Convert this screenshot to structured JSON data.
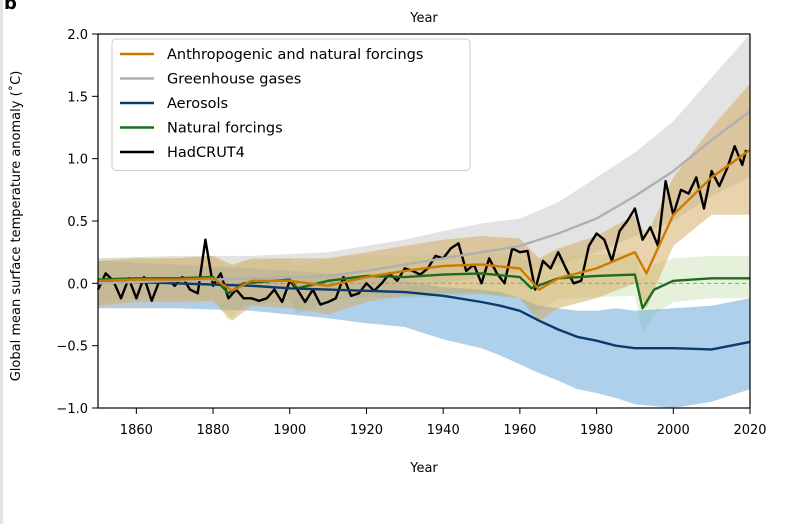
{
  "panel_label": "b",
  "chart_data": {
    "type": "line",
    "top_label": "Year",
    "xlabel": "Year",
    "ylabel": "Global mean surface temperature anomaly (˚C)",
    "xlim": [
      1850,
      2020
    ],
    "ylim": [
      -1.0,
      2.0
    ],
    "x_ticks": [
      1860,
      1880,
      1900,
      1920,
      1940,
      1960,
      1980,
      2000,
      2020
    ],
    "y_ticks": [
      -1.0,
      -0.5,
      0.0,
      0.5,
      1.0,
      1.5,
      2.0
    ],
    "y_tick_labels": [
      "−1.0",
      "−0.5",
      "0.0",
      "0.5",
      "1.0",
      "1.5",
      "2.0"
    ],
    "grid": false,
    "legend_position": "top-left",
    "zero_line": {
      "y": 0,
      "style": "dashed",
      "color": "#999999"
    },
    "series": [
      {
        "name": "Anthropogenic and natural forcings",
        "color": "#cc7a00",
        "band_color": "#d4a85a",
        "x": [
          1850,
          1860,
          1870,
          1880,
          1885,
          1890,
          1900,
          1910,
          1920,
          1930,
          1940,
          1950,
          1960,
          1965,
          1970,
          1980,
          1990,
          1993,
          2000,
          2010,
          2020
        ],
        "y": [
          0.02,
          0.03,
          0.03,
          0.04,
          -0.06,
          0.02,
          0.02,
          -0.02,
          0.05,
          0.1,
          0.14,
          0.15,
          0.12,
          -0.05,
          0.04,
          0.12,
          0.25,
          0.08,
          0.55,
          0.85,
          1.07
        ],
        "lower": [
          -0.18,
          -0.15,
          -0.15,
          -0.14,
          -0.3,
          -0.18,
          -0.2,
          -0.25,
          -0.15,
          -0.1,
          -0.08,
          -0.08,
          -0.12,
          -0.3,
          -0.2,
          -0.12,
          0.0,
          -0.2,
          0.3,
          0.55,
          0.55
        ],
        "upper": [
          0.18,
          0.2,
          0.2,
          0.22,
          0.15,
          0.2,
          0.2,
          0.2,
          0.25,
          0.3,
          0.35,
          0.38,
          0.36,
          0.2,
          0.28,
          0.38,
          0.55,
          0.38,
          0.85,
          1.25,
          1.6
        ]
      },
      {
        "name": "Greenhouse gases",
        "color": "#b0b0b0",
        "band_color": "#c8c8c8",
        "x": [
          1850,
          1870,
          1890,
          1910,
          1920,
          1930,
          1940,
          1950,
          1960,
          1970,
          1980,
          1990,
          2000,
          2010,
          2020
        ],
        "y": [
          0.0,
          0.02,
          0.04,
          0.06,
          0.1,
          0.15,
          0.2,
          0.25,
          0.3,
          0.4,
          0.52,
          0.7,
          0.9,
          1.15,
          1.38
        ],
        "lower": [
          -0.2,
          -0.18,
          -0.15,
          -0.12,
          -0.08,
          -0.03,
          0.0,
          0.05,
          0.1,
          0.15,
          0.25,
          0.38,
          0.5,
          0.7,
          0.85
        ],
        "upper": [
          0.2,
          0.22,
          0.22,
          0.25,
          0.3,
          0.35,
          0.42,
          0.48,
          0.52,
          0.65,
          0.85,
          1.05,
          1.3,
          1.65,
          2.0
        ]
      },
      {
        "name": "Aerosols",
        "color": "#0d3a6e",
        "band_color": "#5fa2d6",
        "x": [
          1850,
          1870,
          1890,
          1900,
          1910,
          1920,
          1930,
          1940,
          1950,
          1955,
          1960,
          1965,
          1970,
          1975,
          1980,
          1985,
          1990,
          2000,
          2010,
          2020
        ],
        "y": [
          0.02,
          0.0,
          -0.02,
          -0.04,
          -0.05,
          -0.06,
          -0.07,
          -0.1,
          -0.15,
          -0.18,
          -0.22,
          -0.3,
          -0.37,
          -0.43,
          -0.46,
          -0.5,
          -0.52,
          -0.52,
          -0.53,
          -0.47
        ],
        "lower": [
          -0.2,
          -0.2,
          -0.22,
          -0.25,
          -0.28,
          -0.32,
          -0.35,
          -0.45,
          -0.52,
          -0.58,
          -0.65,
          -0.72,
          -0.78,
          -0.85,
          -0.88,
          -0.92,
          -0.97,
          -1.0,
          -0.95,
          -0.85
        ],
        "upper": [
          0.18,
          0.15,
          0.12,
          0.1,
          0.08,
          0.05,
          0.02,
          -0.03,
          -0.05,
          -0.07,
          -0.12,
          -0.18,
          -0.2,
          -0.22,
          -0.22,
          -0.2,
          -0.22,
          -0.2,
          -0.18,
          -0.12
        ]
      },
      {
        "name": "Natural forcings",
        "color": "#1d6b1d",
        "band_color": "#cbe3b5",
        "x": [
          1850,
          1860,
          1870,
          1880,
          1884,
          1888,
          1900,
          1902,
          1910,
          1920,
          1930,
          1940,
          1950,
          1960,
          1963,
          1970,
          1980,
          1990,
          1992,
          1995,
          2000,
          2010,
          2020
        ],
        "y": [
          0.03,
          0.04,
          0.04,
          0.05,
          -0.08,
          0.0,
          0.03,
          -0.04,
          0.02,
          0.06,
          0.05,
          0.07,
          0.08,
          0.05,
          -0.04,
          0.04,
          0.06,
          0.07,
          -0.2,
          -0.05,
          0.02,
          0.04,
          0.04
        ],
        "lower": [
          -0.14,
          -0.12,
          -0.12,
          -0.12,
          -0.3,
          -0.18,
          -0.14,
          -0.25,
          -0.14,
          -0.11,
          -0.12,
          -0.1,
          -0.09,
          -0.12,
          -0.25,
          -0.13,
          -0.11,
          -0.1,
          -0.4,
          -0.25,
          -0.15,
          -0.12,
          -0.12
        ],
        "upper": [
          0.2,
          0.21,
          0.2,
          0.22,
          0.1,
          0.18,
          0.2,
          0.14,
          0.2,
          0.23,
          0.22,
          0.24,
          0.25,
          0.22,
          0.15,
          0.21,
          0.23,
          0.24,
          0.05,
          0.15,
          0.2,
          0.22,
          0.22
        ]
      },
      {
        "name": "HadCRUT4",
        "color": "#000000",
        "x": [
          1850,
          1852,
          1854,
          1856,
          1858,
          1860,
          1862,
          1864,
          1866,
          1868,
          1870,
          1872,
          1874,
          1876,
          1878,
          1880,
          1882,
          1884,
          1886,
          1888,
          1890,
          1892,
          1894,
          1896,
          1898,
          1900,
          1902,
          1904,
          1906,
          1908,
          1910,
          1912,
          1914,
          1916,
          1918,
          1920,
          1922,
          1924,
          1926,
          1928,
          1930,
          1932,
          1934,
          1936,
          1938,
          1940,
          1942,
          1944,
          1946,
          1948,
          1950,
          1952,
          1954,
          1956,
          1958,
          1960,
          1962,
          1964,
          1966,
          1968,
          1970,
          1972,
          1974,
          1976,
          1978,
          1980,
          1982,
          1984,
          1986,
          1988,
          1990,
          1992,
          1994,
          1996,
          1998,
          2000,
          2002,
          2004,
          2006,
          2008,
          2010,
          2012,
          2014,
          2016,
          2018,
          2019
        ],
        "y": [
          -0.05,
          0.08,
          0.02,
          -0.12,
          0.04,
          -0.12,
          0.05,
          -0.14,
          0.02,
          0.04,
          -0.02,
          0.05,
          -0.05,
          -0.08,
          0.35,
          -0.02,
          0.08,
          -0.12,
          -0.05,
          -0.12,
          -0.12,
          -0.14,
          -0.12,
          -0.05,
          -0.15,
          0.02,
          -0.05,
          -0.15,
          -0.05,
          -0.17,
          -0.15,
          -0.12,
          0.05,
          -0.1,
          -0.08,
          0.0,
          -0.06,
          0.0,
          0.08,
          0.02,
          0.12,
          0.1,
          0.07,
          0.12,
          0.22,
          0.2,
          0.28,
          0.32,
          0.1,
          0.15,
          0.0,
          0.2,
          0.08,
          0.0,
          0.28,
          0.25,
          0.26,
          -0.05,
          0.18,
          0.12,
          0.25,
          0.12,
          0.0,
          0.02,
          0.3,
          0.4,
          0.35,
          0.18,
          0.42,
          0.5,
          0.6,
          0.35,
          0.45,
          0.3,
          0.82,
          0.55,
          0.75,
          0.72,
          0.85,
          0.6,
          0.9,
          0.78,
          0.92,
          1.1,
          0.95,
          1.07
        ]
      }
    ]
  }
}
